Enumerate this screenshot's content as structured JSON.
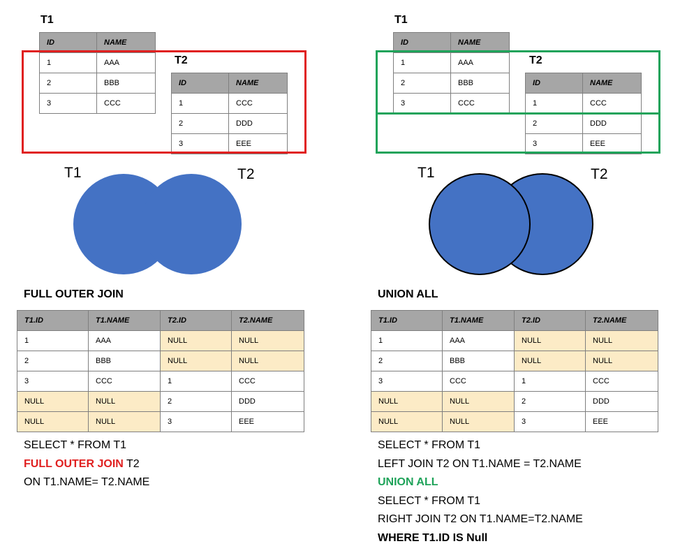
{
  "colors": {
    "red": "#e02020",
    "green": "#1fa35a",
    "venn_fill": "#4472c4",
    "header_bg": "#a6a6a6",
    "null_bg": "#fcebc6"
  },
  "left": {
    "t1": {
      "label": "T1",
      "headers": [
        "ID",
        "NAME"
      ],
      "rows": [
        [
          "1",
          "AAA"
        ],
        [
          "2",
          "BBB"
        ],
        [
          "3",
          "CCC"
        ]
      ]
    },
    "t2": {
      "label": "T2",
      "headers": [
        "ID",
        "NAME"
      ],
      "rows": [
        [
          "1",
          "CCC"
        ],
        [
          "2",
          "DDD"
        ],
        [
          "3",
          "EEE"
        ]
      ]
    },
    "venn": {
      "label1": "T1",
      "label2": "T2"
    },
    "title": "FULL OUTER JOIN",
    "result": {
      "headers": [
        "T1.ID",
        "T1.NAME",
        "T2.ID",
        "T2.NAME"
      ],
      "rows": [
        [
          "1",
          "AAA",
          "NULL",
          "NULL"
        ],
        [
          "2",
          "BBB",
          "NULL",
          "NULL"
        ],
        [
          "3",
          "CCC",
          "1",
          "CCC"
        ],
        [
          "NULL",
          "NULL",
          "2",
          "DDD"
        ],
        [
          "NULL",
          "NULL",
          "3",
          "EEE"
        ]
      ]
    },
    "sql": {
      "line1": "SELECT * FROM T1",
      "line2_keyword": "FULL OUTER JOIN",
      "line2_rest": " T2",
      "line3": "ON T1.NAME= T2.NAME"
    }
  },
  "right": {
    "t1": {
      "label": "T1",
      "headers": [
        "ID",
        "NAME"
      ],
      "rows": [
        [
          "1",
          "AAA"
        ],
        [
          "2",
          "BBB"
        ],
        [
          "3",
          "CCC"
        ]
      ]
    },
    "t2": {
      "label": "T2",
      "headers": [
        "ID",
        "NAME"
      ],
      "rows": [
        [
          "1",
          "CCC"
        ],
        [
          "2",
          "DDD"
        ],
        [
          "3",
          "EEE"
        ]
      ]
    },
    "venn": {
      "label1": "T1",
      "label2": "T2"
    },
    "title": "UNION ALL",
    "result": {
      "headers": [
        "T1.ID",
        "T1.NAME",
        "T2.ID",
        "T2.NAME"
      ],
      "rows": [
        [
          "1",
          "AAA",
          "NULL",
          "NULL"
        ],
        [
          "2",
          "BBB",
          "NULL",
          "NULL"
        ],
        [
          "3",
          "CCC",
          "1",
          "CCC"
        ],
        [
          "NULL",
          "NULL",
          "2",
          "DDD"
        ],
        [
          "NULL",
          "NULL",
          "3",
          "EEE"
        ]
      ]
    },
    "sql": {
      "line1": "SELECT * FROM T1",
      "line2": "LEFT JOIN T2 ON T1.NAME = T2.NAME",
      "line3": "UNION ALL",
      "line4": "SELECT * FROM T1",
      "line5": "RIGHT JOIN T2 ON T1.NAME=T2.NAME",
      "line6": "WHERE T1.ID IS Null"
    }
  }
}
